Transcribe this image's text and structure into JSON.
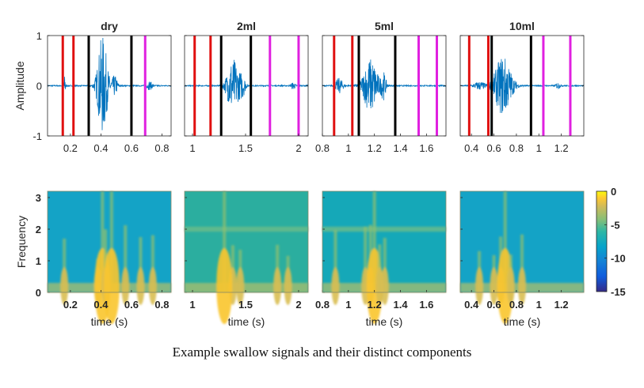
{
  "caption": "Example swallow signals and their distinct components",
  "colors": {
    "waveform": "#0072BD",
    "marker_red": "#E01010",
    "marker_black": "#000000",
    "marker_magenta": "#E020E0",
    "axis": "#262626"
  },
  "chart_data": [
    {
      "type": "line",
      "row": "waveform",
      "title": "dry",
      "ylabel": "Amplitude",
      "xlabel": "",
      "xlim": [
        0.05,
        0.86
      ],
      "ylim": [
        -1,
        1
      ],
      "xticks": [
        0.2,
        0.4,
        0.6,
        0.8
      ],
      "xtick_labels": [
        "0.2",
        "0.4",
        "0.6",
        "0.8"
      ],
      "yticks": [
        -1,
        0,
        1
      ],
      "ytick_labels": [
        "-1",
        "0",
        "1"
      ],
      "bursts": [
        {
          "t": 0.16,
          "amp": 0.2,
          "w": 0.01
        },
        {
          "t": 0.41,
          "amp": 1.0,
          "w": 0.035
        },
        {
          "t": 0.49,
          "amp": 0.2,
          "w": 0.02
        },
        {
          "t": 0.72,
          "amp": 0.08,
          "w": 0.02
        }
      ],
      "markers": [
        {
          "color": "red",
          "t": 0.15
        },
        {
          "color": "red",
          "t": 0.22
        },
        {
          "color": "black",
          "t": 0.32
        },
        {
          "color": "black",
          "t": 0.6
        },
        {
          "color": "magenta",
          "t": 0.69
        }
      ]
    },
    {
      "type": "line",
      "row": "waveform",
      "title": "2ml",
      "xlim": [
        0.925,
        2.09
      ],
      "ylim": [
        -1,
        1
      ],
      "xticks": [
        1,
        1.5,
        2
      ],
      "xtick_labels": [
        "1",
        "1.5",
        "2"
      ],
      "bursts": [
        {
          "t": 1.38,
          "amp": 0.55,
          "w": 0.06
        },
        {
          "t": 1.47,
          "amp": 0.2,
          "w": 0.03
        },
        {
          "t": 1.95,
          "amp": 0.07,
          "w": 0.02
        }
      ],
      "markers": [
        {
          "color": "red",
          "t": 1.02
        },
        {
          "color": "red",
          "t": 1.17
        },
        {
          "color": "black",
          "t": 1.27
        },
        {
          "color": "black",
          "t": 1.55
        },
        {
          "color": "magenta",
          "t": 1.73
        },
        {
          "color": "magenta",
          "t": 2.0
        }
      ]
    },
    {
      "type": "line",
      "row": "waveform",
      "title": "5ml",
      "xlim": [
        0.8,
        1.75
      ],
      "ylim": [
        -1,
        1
      ],
      "xticks": [
        0.8,
        1,
        1.2,
        1.4,
        1.6
      ],
      "xtick_labels": [
        "0.8",
        "1",
        "1.2",
        "1.4",
        "1.6"
      ],
      "bursts": [
        {
          "t": 0.93,
          "amp": 0.15,
          "w": 0.03
        },
        {
          "t": 1.17,
          "amp": 0.55,
          "w": 0.06
        },
        {
          "t": 1.27,
          "amp": 0.25,
          "w": 0.02
        }
      ],
      "markers": [
        {
          "color": "red",
          "t": 0.89
        },
        {
          "color": "red",
          "t": 1.03
        },
        {
          "color": "black",
          "t": 1.08
        },
        {
          "color": "black",
          "t": 1.36
        },
        {
          "color": "magenta",
          "t": 1.54
        },
        {
          "color": "magenta",
          "t": 1.68
        }
      ]
    },
    {
      "type": "line",
      "row": "waveform",
      "title": "10ml",
      "xlim": [
        0.3,
        1.4
      ],
      "ylim": [
        -1,
        1
      ],
      "xticks": [
        0.4,
        0.6,
        0.8,
        1,
        1.2
      ],
      "xtick_labels": [
        "0.4",
        "0.6",
        "0.8",
        "1",
        "1.2"
      ],
      "bursts": [
        {
          "t": 0.47,
          "amp": 0.08,
          "w": 0.05
        },
        {
          "t": 0.68,
          "amp": 0.6,
          "w": 0.08
        },
        {
          "t": 1.17,
          "amp": 0.06,
          "w": 0.02
        }
      ],
      "markers": [
        {
          "color": "red",
          "t": 0.38
        },
        {
          "color": "red",
          "t": 0.55
        },
        {
          "color": "black",
          "t": 0.58
        },
        {
          "color": "black",
          "t": 0.93
        },
        {
          "color": "magenta",
          "t": 1.04
        },
        {
          "color": "magenta",
          "t": 1.28
        }
      ]
    },
    {
      "type": "heatmap",
      "row": "spectrogram",
      "ylabel": "Frequency",
      "xlabel": "time (s)",
      "xlim": [
        0.05,
        0.86
      ],
      "ylim": [
        0,
        3.2
      ],
      "xticks": [
        0.2,
        0.4,
        0.6,
        0.8
      ],
      "xtick_labels": [
        "0.2",
        "0.4",
        "0.6",
        "0.8"
      ],
      "yticks": [
        0,
        1,
        2,
        3
      ],
      "ytick_labels": [
        "0",
        "1",
        "2",
        "3"
      ],
      "hot_times": [
        0.16,
        0.38,
        0.41,
        0.43,
        0.47,
        0.56,
        0.66,
        0.74
      ],
      "hband": null
    },
    {
      "type": "heatmap",
      "row": "spectrogram",
      "xlabel": "time (s)",
      "xlim": [
        0.925,
        2.09
      ],
      "ylim": [
        0,
        3.2
      ],
      "xticks": [
        1,
        1.5,
        2
      ],
      "xtick_labels": [
        "1",
        "1.5",
        "2"
      ],
      "hot_times": [
        1.38,
        1.45,
        1.3,
        1.8,
        1.9
      ],
      "hband": 2.0
    },
    {
      "type": "heatmap",
      "row": "spectrogram",
      "xlabel": "time (s)",
      "xlim": [
        0.8,
        1.75
      ],
      "ylim": [
        0,
        3.2
      ],
      "xticks": [
        0.8,
        1,
        1.2,
        1.4,
        1.6
      ],
      "xtick_labels": [
        "0.8",
        "1",
        "1.2",
        "1.4",
        "1.6"
      ],
      "hot_times": [
        0.9,
        1.13,
        1.17,
        1.2,
        1.24,
        1.28
      ],
      "hband": 2.0
    },
    {
      "type": "heatmap",
      "row": "spectrogram",
      "xlabel": "time (s)",
      "xlim": [
        0.3,
        1.4
      ],
      "ylim": [
        0,
        3.2
      ],
      "xticks": [
        0.4,
        0.6,
        0.8,
        1,
        1.2
      ],
      "xtick_labels": [
        "0.4",
        "0.6",
        "0.8",
        "1",
        "1.2"
      ],
      "hot_times": [
        0.47,
        0.6,
        0.66,
        0.7,
        0.75,
        0.85
      ],
      "hband": null
    }
  ],
  "colorbar": {
    "ticks": [
      0,
      -5,
      -10,
      -15
    ],
    "tick_labels": [
      "0",
      "-5",
      "-10",
      "-15"
    ],
    "range": [
      -15,
      0
    ]
  }
}
